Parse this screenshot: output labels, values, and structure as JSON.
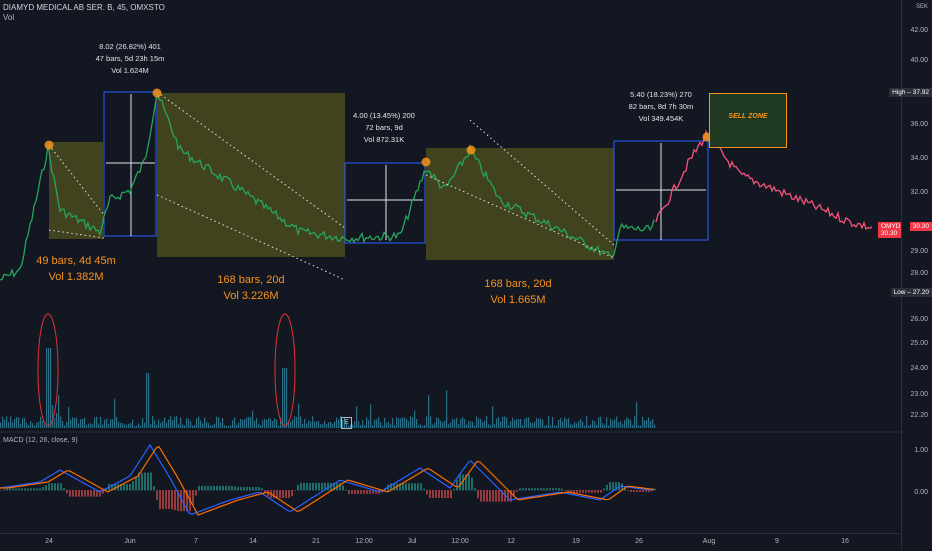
{
  "header": {
    "symbol": "DIAMYD MEDICAL AB SER. B, 45, OMXSTO",
    "volume_label": "Vol"
  },
  "macd_header": "MACD (12, 26, close, 9)",
  "price_axis": {
    "currency": "SEK",
    "ticks": [
      "42.00",
      "40.00",
      "38.00",
      "36.00",
      "34.00",
      "32.00",
      "30.00",
      "29.00",
      "28.00",
      "27.00",
      "26.00",
      "25.00",
      "24.00",
      "23.00",
      "22.20"
    ],
    "high": {
      "label": "High",
      "value": "37.92"
    },
    "low": {
      "label": "Low",
      "value": "27.20"
    },
    "current": {
      "label": "OMYD_B",
      "value": "30.30"
    }
  },
  "macd_axis": {
    "ticks": [
      "1.00",
      "0.00"
    ]
  },
  "time_axis": [
    "24",
    "Jun",
    "7",
    "14",
    "21",
    "12:00",
    "Jul",
    "12:00",
    "12",
    "19",
    "26",
    "Aug",
    "9",
    "16"
  ],
  "annotations": {
    "m1": [
      "8.02 (26.82%) 401",
      "47 bars, 5d 23h 15m",
      "Vol 1.624M"
    ],
    "m2": [
      "4.00 (13.45%) 200",
      "72 bars, 9d",
      "Vol 872.31K"
    ],
    "m3": [
      "5.40 (18.23%) 270",
      "82 bars, 8d 7h 30m",
      "Vol 349.454K"
    ]
  },
  "range_labels": {
    "r1": [
      "49 bars, 4d 45m",
      "Vol 1.382M"
    ],
    "r2": [
      "168 bars, 20d",
      "Vol 3.226M"
    ],
    "r3": [
      "168 bars, 20d",
      "Vol 1.665M"
    ]
  },
  "sell_zone": "SELL ZONE",
  "e_marker": "E",
  "colors": {
    "background": "#131722",
    "price_up": "#26a65b",
    "price_projection": "#f7527a",
    "box_fill": "#5b5a1e",
    "orange": "#f7931a",
    "macd_line": "#2962ff",
    "signal_line": "#ff6d00",
    "volume": "#2a6f86",
    "ellipse": "#e0322f"
  }
}
